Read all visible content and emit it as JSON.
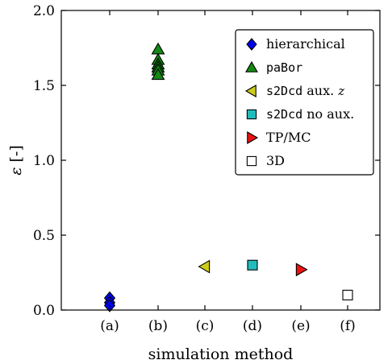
{
  "chart_data": {
    "type": "scatter",
    "xlabel": "simulation method",
    "ylabel_symbol": "ε",
    "ylabel_unit": " [-]",
    "categories": [
      "(a)",
      "(b)",
      "(c)",
      "(d)",
      "(e)",
      "(f)"
    ],
    "ylim": [
      0.0,
      2.0
    ],
    "yticks": [
      "0.0",
      "0.5",
      "1.0",
      "1.5",
      "2.0"
    ],
    "ytick_values": [
      0.0,
      0.5,
      1.0,
      1.5,
      2.0
    ],
    "grid": false,
    "legend_position": "top-right",
    "series": [
      {
        "key": "hierarchical",
        "legend_parts": [
          {
            "text": "hierarchical",
            "style": "serif"
          }
        ],
        "marker": "diamond",
        "color": "#0000ee",
        "points": [
          {
            "x": "(a)",
            "y": 0.08
          },
          {
            "x": "(a)",
            "y": 0.05
          },
          {
            "x": "(a)",
            "y": 0.03
          }
        ]
      },
      {
        "key": "paBor",
        "legend_parts": [
          {
            "text": "paBor",
            "style": "mono"
          }
        ],
        "marker": "triangle-up",
        "color": "#138a13",
        "points": [
          {
            "x": "(b)",
            "y": 1.74
          },
          {
            "x": "(b)",
            "y": 1.67
          },
          {
            "x": "(b)",
            "y": 1.64
          },
          {
            "x": "(b)",
            "y": 1.62
          },
          {
            "x": "(b)",
            "y": 1.6
          },
          {
            "x": "(b)",
            "y": 1.57
          }
        ]
      },
      {
        "key": "s2Dcd-aux",
        "legend_parts": [
          {
            "text": "s2Dcd",
            "style": "mono"
          },
          {
            "text": " aux. ",
            "style": "serif"
          },
          {
            "text": "z",
            "style": "italic"
          }
        ],
        "marker": "triangle-left",
        "color": "#cccc1a",
        "points": [
          {
            "x": "(c)",
            "y": 0.29
          }
        ]
      },
      {
        "key": "s2Dcd-noaux",
        "legend_parts": [
          {
            "text": "s2Dcd",
            "style": "mono"
          },
          {
            "text": " no aux.",
            "style": "serif"
          }
        ],
        "marker": "square",
        "color": "#22bcbc",
        "points": [
          {
            "x": "(d)",
            "y": 0.3
          }
        ]
      },
      {
        "key": "tpmc",
        "legend_parts": [
          {
            "text": "TP/MC",
            "style": "serif"
          }
        ],
        "marker": "triangle-right",
        "color": "#ee1111",
        "points": [
          {
            "x": "(e)",
            "y": 0.27
          }
        ]
      },
      {
        "key": "3d",
        "legend_parts": [
          {
            "text": "3D",
            "style": "serif"
          }
        ],
        "marker": "square",
        "color": "#ffffff",
        "points": [
          {
            "x": "(f)",
            "y": 0.1
          }
        ]
      }
    ]
  }
}
